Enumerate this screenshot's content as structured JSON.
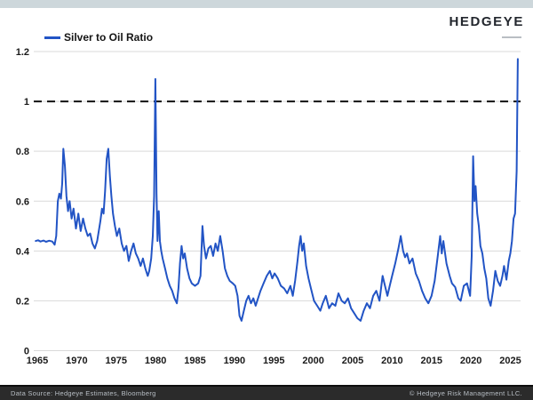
{
  "header": {
    "logo_text": "HEDGEYE"
  },
  "legend": {
    "label": "Silver to Oil Ratio"
  },
  "footer": {
    "left": "Data Source: Hedgeye Estimates, Bloomberg",
    "right": "© Hedgeye Risk Management LLC."
  },
  "colors": {
    "line": "#2254c5",
    "grid": "#d9d9d9",
    "reference_line": "#111111",
    "topbar_bg": "#cdd7db",
    "footer_bg": "#2b2b2b",
    "footer_text": "#b9bfc6",
    "axis_text": "#1a1a1a"
  },
  "chart_data": {
    "type": "line",
    "title": "Silver to Oil Ratio",
    "xlabel": "",
    "ylabel": "",
    "xlim": [
      1964.6,
      2026.4
    ],
    "ylim": [
      0,
      1.2
    ],
    "grid": true,
    "legend_position": "top-left",
    "reference_line": 1.0,
    "x_tick_labels": [
      "1965",
      "1970",
      "1975",
      "1980",
      "1985",
      "1990",
      "1995",
      "2000",
      "2005",
      "2010",
      "2015",
      "2020",
      "2025"
    ],
    "x_ticks": [
      1965,
      1970,
      1975,
      1980,
      1985,
      1990,
      1995,
      2000,
      2005,
      2010,
      2015,
      2020,
      2025
    ],
    "y_tick_labels": [
      "0",
      "0.2",
      "0.4",
      "0.6",
      "0.8",
      "1",
      "1.2"
    ],
    "y_ticks": [
      0,
      0.2,
      0.4,
      0.6,
      0.8,
      1,
      1.2
    ],
    "series": [
      {
        "name": "Silver to Oil Ratio",
        "color": "#2254c5",
        "points": [
          [
            1964.8,
            0.44
          ],
          [
            1965.1,
            0.443
          ],
          [
            1965.4,
            0.438
          ],
          [
            1965.8,
            0.442
          ],
          [
            1966.1,
            0.437
          ],
          [
            1966.5,
            0.441
          ],
          [
            1966.9,
            0.438
          ],
          [
            1967.2,
            0.425
          ],
          [
            1967.4,
            0.46
          ],
          [
            1967.6,
            0.6
          ],
          [
            1967.8,
            0.63
          ],
          [
            1968.0,
            0.61
          ],
          [
            1968.15,
            0.67
          ],
          [
            1968.3,
            0.81
          ],
          [
            1968.5,
            0.74
          ],
          [
            1968.7,
            0.62
          ],
          [
            1968.9,
            0.56
          ],
          [
            1969.1,
            0.6
          ],
          [
            1969.35,
            0.53
          ],
          [
            1969.6,
            0.57
          ],
          [
            1969.9,
            0.49
          ],
          [
            1970.2,
            0.55
          ],
          [
            1970.5,
            0.48
          ],
          [
            1970.8,
            0.53
          ],
          [
            1971.1,
            0.49
          ],
          [
            1971.4,
            0.46
          ],
          [
            1971.7,
            0.47
          ],
          [
            1972.0,
            0.43
          ],
          [
            1972.3,
            0.41
          ],
          [
            1972.6,
            0.44
          ],
          [
            1973.0,
            0.52
          ],
          [
            1973.2,
            0.57
          ],
          [
            1973.4,
            0.55
          ],
          [
            1973.6,
            0.64
          ],
          [
            1973.8,
            0.77
          ],
          [
            1974.0,
            0.81
          ],
          [
            1974.2,
            0.7
          ],
          [
            1974.4,
            0.62
          ],
          [
            1974.6,
            0.55
          ],
          [
            1974.85,
            0.5
          ],
          [
            1975.1,
            0.46
          ],
          [
            1975.4,
            0.49
          ],
          [
            1975.7,
            0.43
          ],
          [
            1976.0,
            0.4
          ],
          [
            1976.3,
            0.42
          ],
          [
            1976.6,
            0.36
          ],
          [
            1976.9,
            0.4
          ],
          [
            1977.2,
            0.43
          ],
          [
            1977.5,
            0.39
          ],
          [
            1977.8,
            0.37
          ],
          [
            1978.1,
            0.34
          ],
          [
            1978.4,
            0.37
          ],
          [
            1978.7,
            0.33
          ],
          [
            1979.0,
            0.3
          ],
          [
            1979.2,
            0.32
          ],
          [
            1979.45,
            0.37
          ],
          [
            1979.65,
            0.46
          ],
          [
            1979.82,
            0.62
          ],
          [
            1979.98,
            1.09
          ],
          [
            1980.12,
            0.63
          ],
          [
            1980.25,
            0.44
          ],
          [
            1980.4,
            0.56
          ],
          [
            1980.55,
            0.44
          ],
          [
            1980.72,
            0.4
          ],
          [
            1980.9,
            0.37
          ],
          [
            1981.2,
            0.33
          ],
          [
            1981.5,
            0.29
          ],
          [
            1981.8,
            0.26
          ],
          [
            1982.1,
            0.24
          ],
          [
            1982.4,
            0.21
          ],
          [
            1982.7,
            0.19
          ],
          [
            1982.9,
            0.25
          ],
          [
            1983.1,
            0.35
          ],
          [
            1983.3,
            0.42
          ],
          [
            1983.5,
            0.37
          ],
          [
            1983.7,
            0.39
          ],
          [
            1984.0,
            0.33
          ],
          [
            1984.3,
            0.29
          ],
          [
            1984.6,
            0.27
          ],
          [
            1985.0,
            0.26
          ],
          [
            1985.4,
            0.27
          ],
          [
            1985.7,
            0.3
          ],
          [
            1985.95,
            0.5
          ],
          [
            1986.15,
            0.42
          ],
          [
            1986.4,
            0.37
          ],
          [
            1986.7,
            0.41
          ],
          [
            1987.0,
            0.42
          ],
          [
            1987.3,
            0.38
          ],
          [
            1987.6,
            0.43
          ],
          [
            1987.9,
            0.4
          ],
          [
            1988.2,
            0.46
          ],
          [
            1988.5,
            0.4
          ],
          [
            1988.8,
            0.33
          ],
          [
            1989.1,
            0.3
          ],
          [
            1989.4,
            0.28
          ],
          [
            1989.8,
            0.27
          ],
          [
            1990.1,
            0.26
          ],
          [
            1990.4,
            0.22
          ],
          [
            1990.65,
            0.14
          ],
          [
            1990.9,
            0.12
          ],
          [
            1991.2,
            0.16
          ],
          [
            1991.5,
            0.2
          ],
          [
            1991.8,
            0.22
          ],
          [
            1992.1,
            0.19
          ],
          [
            1992.4,
            0.21
          ],
          [
            1992.7,
            0.18
          ],
          [
            1993.0,
            0.21
          ],
          [
            1993.3,
            0.24
          ],
          [
            1993.7,
            0.27
          ],
          [
            1994.1,
            0.3
          ],
          [
            1994.5,
            0.32
          ],
          [
            1994.8,
            0.29
          ],
          [
            1995.1,
            0.31
          ],
          [
            1995.5,
            0.29
          ],
          [
            1995.9,
            0.26
          ],
          [
            1996.3,
            0.25
          ],
          [
            1996.7,
            0.23
          ],
          [
            1997.1,
            0.26
          ],
          [
            1997.4,
            0.22
          ],
          [
            1997.7,
            0.28
          ],
          [
            1998.0,
            0.36
          ],
          [
            1998.2,
            0.42
          ],
          [
            1998.4,
            0.46
          ],
          [
            1998.6,
            0.4
          ],
          [
            1998.8,
            0.43
          ],
          [
            1999.1,
            0.34
          ],
          [
            1999.4,
            0.29
          ],
          [
            1999.7,
            0.25
          ],
          [
            2000.1,
            0.2
          ],
          [
            2000.5,
            0.18
          ],
          [
            2000.9,
            0.16
          ],
          [
            2001.2,
            0.19
          ],
          [
            2001.6,
            0.22
          ],
          [
            2002.0,
            0.17
          ],
          [
            2002.4,
            0.19
          ],
          [
            2002.8,
            0.18
          ],
          [
            2003.2,
            0.23
          ],
          [
            2003.6,
            0.2
          ],
          [
            2004.0,
            0.19
          ],
          [
            2004.4,
            0.21
          ],
          [
            2004.8,
            0.17
          ],
          [
            2005.2,
            0.15
          ],
          [
            2005.6,
            0.13
          ],
          [
            2006.0,
            0.12
          ],
          [
            2006.4,
            0.16
          ],
          [
            2006.8,
            0.19
          ],
          [
            2007.2,
            0.17
          ],
          [
            2007.6,
            0.22
          ],
          [
            2008.0,
            0.24
          ],
          [
            2008.4,
            0.2
          ],
          [
            2008.8,
            0.3
          ],
          [
            2009.1,
            0.26
          ],
          [
            2009.4,
            0.22
          ],
          [
            2009.7,
            0.26
          ],
          [
            2010.0,
            0.3
          ],
          [
            2010.4,
            0.35
          ],
          [
            2010.8,
            0.41
          ],
          [
            2011.1,
            0.46
          ],
          [
            2011.4,
            0.4
          ],
          [
            2011.65,
            0.375
          ],
          [
            2011.9,
            0.39
          ],
          [
            2012.2,
            0.35
          ],
          [
            2012.6,
            0.37
          ],
          [
            2013.0,
            0.31
          ],
          [
            2013.4,
            0.28
          ],
          [
            2013.8,
            0.24
          ],
          [
            2014.2,
            0.21
          ],
          [
            2014.6,
            0.19
          ],
          [
            2015.0,
            0.22
          ],
          [
            2015.4,
            0.28
          ],
          [
            2015.8,
            0.38
          ],
          [
            2016.1,
            0.46
          ],
          [
            2016.3,
            0.39
          ],
          [
            2016.5,
            0.44
          ],
          [
            2016.9,
            0.35
          ],
          [
            2017.3,
            0.3
          ],
          [
            2017.6,
            0.27
          ],
          [
            2018.0,
            0.255
          ],
          [
            2018.4,
            0.21
          ],
          [
            2018.7,
            0.2
          ],
          [
            2019.1,
            0.26
          ],
          [
            2019.5,
            0.27
          ],
          [
            2019.9,
            0.22
          ],
          [
            2020.1,
            0.38
          ],
          [
            2020.28,
            0.78
          ],
          [
            2020.45,
            0.6
          ],
          [
            2020.6,
            0.66
          ],
          [
            2020.8,
            0.55
          ],
          [
            2021.0,
            0.5
          ],
          [
            2021.2,
            0.42
          ],
          [
            2021.45,
            0.39
          ],
          [
            2021.7,
            0.33
          ],
          [
            2021.95,
            0.29
          ],
          [
            2022.2,
            0.21
          ],
          [
            2022.5,
            0.18
          ],
          [
            2022.8,
            0.24
          ],
          [
            2023.1,
            0.32
          ],
          [
            2023.4,
            0.28
          ],
          [
            2023.7,
            0.26
          ],
          [
            2024.0,
            0.3
          ],
          [
            2024.2,
            0.34
          ],
          [
            2024.5,
            0.285
          ],
          [
            2024.8,
            0.36
          ],
          [
            2025.0,
            0.39
          ],
          [
            2025.2,
            0.44
          ],
          [
            2025.4,
            0.53
          ],
          [
            2025.6,
            0.55
          ],
          [
            2025.8,
            0.72
          ],
          [
            2025.95,
            1.17
          ]
        ]
      }
    ]
  }
}
